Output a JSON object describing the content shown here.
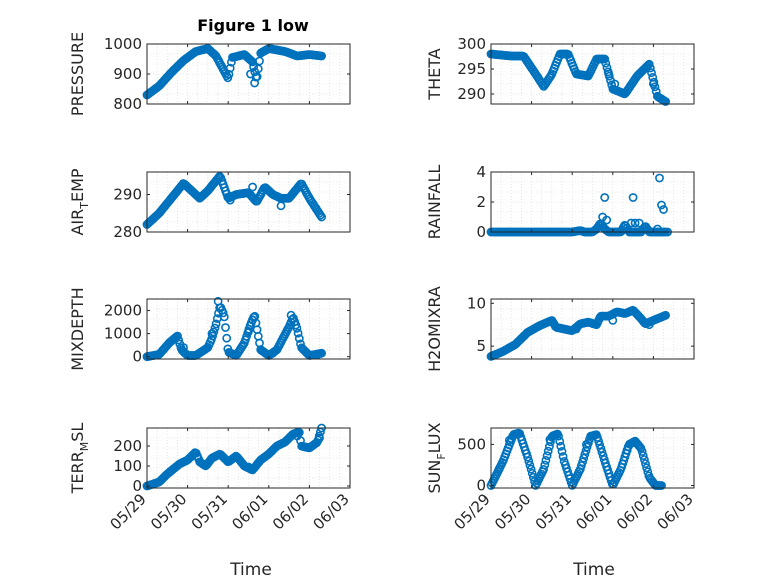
{
  "figure": {
    "title": "Figure 1 low",
    "xlabel": "Time",
    "marker_color": "#0072BD"
  },
  "chart_data": [
    {
      "type": "scatter",
      "ylabel": {
        "pre": "PRESSURE",
        "sub": "",
        "post": ""
      },
      "xlim": [
        0,
        5
      ],
      "x_ticks": [
        "05/29",
        "05/30",
        "05/31",
        "06/01",
        "06/02",
        "06/03"
      ],
      "ylim": [
        800,
        1000
      ],
      "y_ticks": [
        800,
        900,
        1000
      ],
      "grid": true,
      "anchors": [
        [
          0.0,
          830
        ],
        [
          0.3,
          860
        ],
        [
          0.6,
          905
        ],
        [
          0.9,
          945
        ],
        [
          1.2,
          975
        ],
        [
          1.5,
          985
        ],
        [
          1.7,
          960
        ],
        [
          1.9,
          910
        ],
        [
          2.0,
          885
        ],
        [
          2.1,
          955
        ],
        [
          2.4,
          965
        ],
        [
          2.6,
          940
        ],
        [
          2.7,
          880
        ],
        [
          2.8,
          970
        ],
        [
          3.0,
          985
        ],
        [
          3.4,
          975
        ],
        [
          3.7,
          960
        ],
        [
          4.0,
          965
        ],
        [
          4.3,
          960
        ]
      ],
      "scatter": [
        [
          2.55,
          900
        ],
        [
          2.65,
          870
        ]
      ]
    },
    {
      "type": "scatter",
      "ylabel": {
        "pre": "THETA",
        "sub": "",
        "post": ""
      },
      "xlim": [
        0,
        5
      ],
      "x_ticks": [
        "05/29",
        "05/30",
        "05/31",
        "06/01",
        "06/02",
        "06/03"
      ],
      "ylim": [
        288,
        300
      ],
      "y_ticks": [
        290,
        295,
        300
      ],
      "grid": true,
      "anchors": [
        [
          0.0,
          298
        ],
        [
          0.5,
          297.6
        ],
        [
          0.8,
          297.6
        ],
        [
          1.1,
          294
        ],
        [
          1.3,
          291.5
        ],
        [
          1.5,
          294
        ],
        [
          1.7,
          298
        ],
        [
          1.9,
          298
        ],
        [
          2.1,
          294
        ],
        [
          2.4,
          293.6
        ],
        [
          2.6,
          297
        ],
        [
          2.8,
          297
        ],
        [
          3.0,
          291
        ],
        [
          3.3,
          290
        ],
        [
          3.6,
          293.6
        ],
        [
          3.9,
          296
        ],
        [
          4.1,
          289.5
        ],
        [
          4.3,
          288.5
        ]
      ],
      "scatter": [
        [
          2.9,
          294
        ],
        [
          3.05,
          292
        ],
        [
          4.0,
          292
        ]
      ]
    },
    {
      "type": "scatter",
      "ylabel": {
        "pre": "AIR",
        "sub": "T",
        "post": "EMP"
      },
      "xlim": [
        0,
        5
      ],
      "x_ticks": [
        "05/29",
        "05/30",
        "05/31",
        "06/01",
        "06/02",
        "06/03"
      ],
      "ylim": [
        280,
        296
      ],
      "y_ticks": [
        280,
        290
      ],
      "grid": true,
      "anchors": [
        [
          0.0,
          282
        ],
        [
          0.3,
          285
        ],
        [
          0.6,
          289
        ],
        [
          0.9,
          293
        ],
        [
          1.1,
          291
        ],
        [
          1.3,
          289
        ],
        [
          1.5,
          291
        ],
        [
          1.8,
          295
        ],
        [
          2.0,
          289
        ],
        [
          2.2,
          290
        ],
        [
          2.5,
          290.5
        ],
        [
          2.7,
          288
        ],
        [
          2.9,
          292
        ],
        [
          3.1,
          290
        ],
        [
          3.3,
          289
        ],
        [
          3.5,
          289
        ],
        [
          3.8,
          293
        ],
        [
          4.0,
          289
        ],
        [
          4.3,
          284
        ]
      ],
      "scatter": [
        [
          2.6,
          292
        ],
        [
          3.3,
          287
        ],
        [
          2.05,
          288.5
        ]
      ]
    },
    {
      "type": "scatter",
      "ylabel": {
        "pre": "RAINFALL",
        "sub": "",
        "post": ""
      },
      "xlim": [
        0,
        5
      ],
      "x_ticks": [
        "05/29",
        "05/30",
        "05/31",
        "06/01",
        "06/02",
        "06/03"
      ],
      "ylim": [
        0,
        4
      ],
      "y_ticks": [
        0,
        2,
        4
      ],
      "grid": true,
      "anchors": [
        [
          0.0,
          0
        ],
        [
          2.0,
          0
        ],
        [
          2.2,
          0.1
        ],
        [
          2.3,
          0
        ],
        [
          2.5,
          0
        ],
        [
          2.6,
          0.2
        ],
        [
          2.7,
          0.6
        ],
        [
          2.8,
          0.2
        ],
        [
          2.9,
          0
        ],
        [
          3.2,
          0
        ],
        [
          3.3,
          0.5
        ],
        [
          3.4,
          0
        ],
        [
          3.7,
          0
        ],
        [
          3.8,
          0.4
        ],
        [
          3.9,
          0
        ],
        [
          4.3,
          0
        ]
      ],
      "scatter": [
        [
          2.8,
          2.3
        ],
        [
          2.75,
          1.0
        ],
        [
          2.85,
          0.8
        ],
        [
          3.5,
          2.3
        ],
        [
          3.45,
          0.6
        ],
        [
          3.55,
          0.6
        ],
        [
          3.65,
          0.6
        ],
        [
          4.15,
          3.6
        ],
        [
          4.2,
          1.8
        ],
        [
          4.25,
          1.5
        ],
        [
          4.1,
          0.2
        ],
        [
          4.35,
          0
        ]
      ]
    },
    {
      "type": "scatter",
      "ylabel": {
        "pre": "MIXDEPTH",
        "sub": "",
        "post": ""
      },
      "xlim": [
        0,
        5
      ],
      "x_ticks": [
        "05/29",
        "05/30",
        "05/31",
        "06/01",
        "06/02",
        "06/03"
      ],
      "ylim": [
        -100,
        2500
      ],
      "y_ticks": [
        0,
        1000,
        2000
      ],
      "grid": true,
      "anchors": [
        [
          0.0,
          0
        ],
        [
          0.3,
          100
        ],
        [
          0.55,
          600
        ],
        [
          0.75,
          900
        ],
        [
          0.85,
          300
        ],
        [
          1.0,
          50
        ],
        [
          1.2,
          50
        ],
        [
          1.5,
          400
        ],
        [
          1.6,
          800
        ],
        [
          1.7,
          1400
        ],
        [
          1.8,
          2200
        ],
        [
          1.9,
          1800
        ],
        [
          2.0,
          200
        ],
        [
          2.2,
          50
        ],
        [
          2.4,
          600
        ],
        [
          2.55,
          1400
        ],
        [
          2.65,
          1800
        ],
        [
          2.8,
          300
        ],
        [
          3.0,
          50
        ],
        [
          3.2,
          300
        ],
        [
          3.35,
          800
        ],
        [
          3.5,
          1300
        ],
        [
          3.6,
          1700
        ],
        [
          3.7,
          1200
        ],
        [
          3.8,
          400
        ],
        [
          4.0,
          50
        ],
        [
          4.3,
          150
        ]
      ],
      "scatter": [
        [
          0.9,
          400
        ],
        [
          1.75,
          2400
        ],
        [
          1.6,
          1000
        ],
        [
          2.6,
          1600
        ],
        [
          3.55,
          1800
        ],
        [
          2.5,
          1100
        ],
        [
          3.1,
          150
        ],
        [
          4.2,
          80
        ]
      ]
    },
    {
      "type": "scatter",
      "ylabel": {
        "pre": "H2OMIXRA",
        "sub": "",
        "post": ""
      },
      "xlim": [
        0,
        5
      ],
      "x_ticks": [
        "05/29",
        "05/30",
        "05/31",
        "06/01",
        "06/02",
        "06/03"
      ],
      "ylim": [
        3.5,
        10.5
      ],
      "y_ticks": [
        5,
        10
      ],
      "grid": true,
      "anchors": [
        [
          0.0,
          3.8
        ],
        [
          0.3,
          4.4
        ],
        [
          0.6,
          5.2
        ],
        [
          0.9,
          6.6
        ],
        [
          1.2,
          7.4
        ],
        [
          1.5,
          8.0
        ],
        [
          1.6,
          7.2
        ],
        [
          1.8,
          7.0
        ],
        [
          2.0,
          6.8
        ],
        [
          2.2,
          7.6
        ],
        [
          2.4,
          7.8
        ],
        [
          2.6,
          7.5
        ],
        [
          2.7,
          8.5
        ],
        [
          2.9,
          8.5
        ],
        [
          3.1,
          9.0
        ],
        [
          3.3,
          8.8
        ],
        [
          3.5,
          9.2
        ],
        [
          3.7,
          8.2
        ],
        [
          3.8,
          7.6
        ],
        [
          4.0,
          8.0
        ],
        [
          4.3,
          8.6
        ]
      ],
      "scatter": [
        [
          3.0,
          8.0
        ],
        [
          3.9,
          7.5
        ],
        [
          2.1,
          7.0
        ]
      ]
    },
    {
      "type": "scatter",
      "ylabel": {
        "pre": "TERR",
        "sub": "M",
        "post": "SL"
      },
      "xlim": [
        0,
        5
      ],
      "x_ticks": [
        "05/29",
        "05/30",
        "05/31",
        "06/01",
        "06/02",
        "06/03"
      ],
      "ylim": [
        -10,
        290
      ],
      "y_ticks": [
        0,
        100,
        200
      ],
      "grid": true,
      "anchors": [
        [
          0.0,
          0
        ],
        [
          0.3,
          20
        ],
        [
          0.5,
          60
        ],
        [
          0.8,
          110
        ],
        [
          1.0,
          130
        ],
        [
          1.2,
          170
        ],
        [
          1.3,
          120
        ],
        [
          1.45,
          100
        ],
        [
          1.6,
          140
        ],
        [
          1.8,
          160
        ],
        [
          2.0,
          120
        ],
        [
          2.2,
          150
        ],
        [
          2.4,
          100
        ],
        [
          2.6,
          80
        ],
        [
          2.8,
          130
        ],
        [
          3.0,
          160
        ],
        [
          3.2,
          200
        ],
        [
          3.4,
          220
        ],
        [
          3.6,
          260
        ],
        [
          3.75,
          270
        ],
        [
          3.8,
          200
        ],
        [
          4.0,
          190
        ],
        [
          4.2,
          220
        ],
        [
          4.3,
          290
        ]
      ],
      "scatter": [
        [
          2.5,
          95
        ],
        [
          4.25,
          240
        ],
        [
          3.7,
          250
        ]
      ]
    },
    {
      "type": "scatter",
      "ylabel": {
        "pre": "SUN",
        "sub": "F",
        "post": "LUX"
      },
      "xlim": [
        0,
        5
      ],
      "x_ticks": [
        "05/29",
        "05/30",
        "05/31",
        "06/01",
        "06/02",
        "06/03"
      ],
      "ylim": [
        -30,
        700
      ],
      "y_ticks": [
        0,
        500
      ],
      "grid": true,
      "anchors": [
        [
          0.0,
          0
        ],
        [
          0.3,
          300
        ],
        [
          0.55,
          620
        ],
        [
          0.7,
          640
        ],
        [
          0.9,
          350
        ],
        [
          1.1,
          0
        ],
        [
          1.3,
          200
        ],
        [
          1.5,
          600
        ],
        [
          1.65,
          630
        ],
        [
          1.8,
          300
        ],
        [
          2.0,
          0
        ],
        [
          2.2,
          200
        ],
        [
          2.45,
          600
        ],
        [
          2.6,
          620
        ],
        [
          2.8,
          300
        ],
        [
          3.0,
          0
        ],
        [
          3.2,
          200
        ],
        [
          3.4,
          500
        ],
        [
          3.55,
          540
        ],
        [
          3.7,
          450
        ],
        [
          3.9,
          100
        ],
        [
          4.05,
          0
        ],
        [
          4.2,
          0
        ]
      ],
      "scatter": [
        [
          0.45,
          550
        ],
        [
          1.45,
          560
        ],
        [
          2.35,
          500
        ],
        [
          3.35,
          430
        ],
        [
          0.2,
          200
        ]
      ]
    }
  ]
}
